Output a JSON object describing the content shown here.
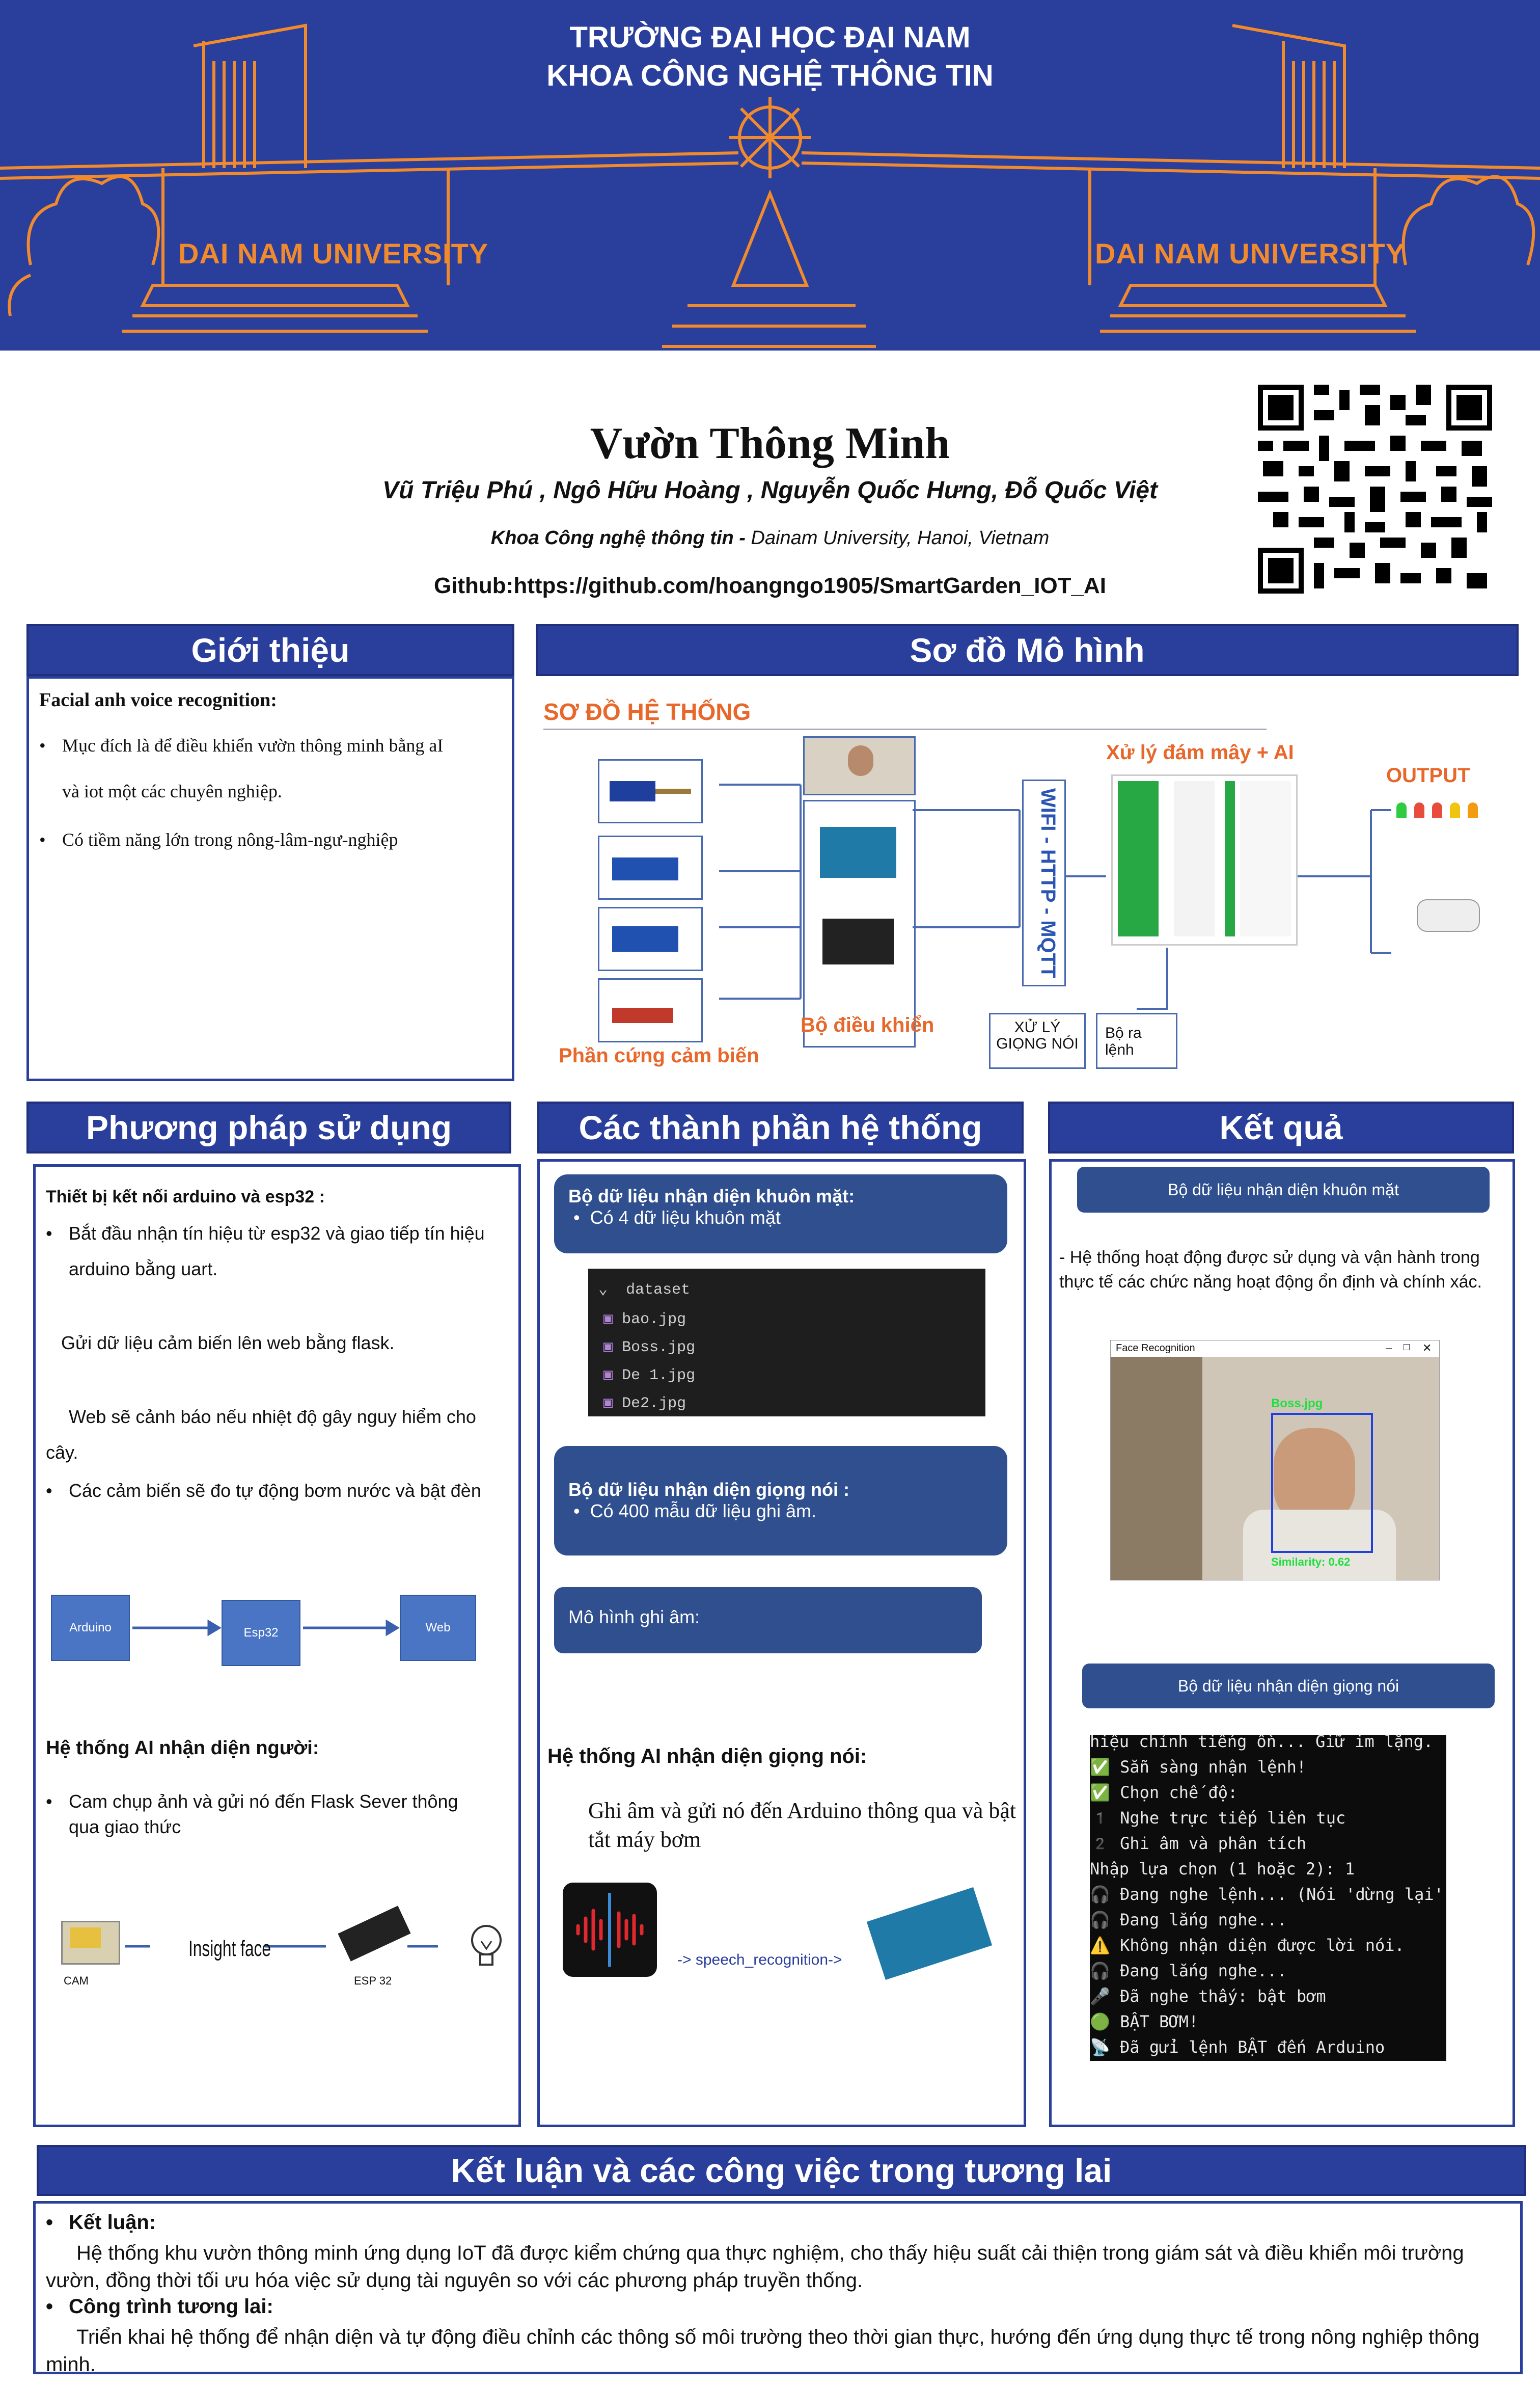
{
  "banner": {
    "line1": "TRƯỜNG ĐẠI HỌC ĐẠI NAM",
    "line2": "KHOA CÔNG NGHỆ THÔNG TIN",
    "brand_left": "DAI NAM UNIVERSITY",
    "brand_right": "DAI NAM UNIVERSITY",
    "bg_color": "#2a3e9c",
    "accent_color": "#f08a2c"
  },
  "header": {
    "title": "Vườn Thông Minh",
    "authors": "Vũ Triệu Phú , Ngô Hữu Hoàng , Nguyễn Quốc Hưng, Đỗ Quốc Việt",
    "affil_bold": "Khoa Công nghệ thông tin -",
    "affil_rest": " Dainam University, Hanoi, Vietnam",
    "github": "Github:https://github.com/hoangngo1905/SmartGarden_IOT_AI",
    "qr_icon": "qr-code-icon"
  },
  "intro": {
    "heading": "Giới thiệu",
    "subtitle": "Facial anh voice recognition:",
    "bullet1_a": "Mục đích là để điều khiển vườn thông minh bằng aI",
    "bullet1_b": "và iot một các chuyên nghiệp.",
    "bullet2": "Có tiềm năng lớn trong nông-lâm-ngư-nghiệp"
  },
  "diagram": {
    "heading": "Sơ đồ Mô hình",
    "system_label": "SƠ ĐỒ HỆ THỐNG",
    "cloud_label": "Xử lý đám mây + AI",
    "output_label": "OUTPUT",
    "wifi_label": "WIFI - HTTP - MQTT",
    "controller_label": "Bộ điều khiển",
    "sensor_label": "Phần cứng cảm biến",
    "voice_box": "XỬ LÝ GIỌNG NÓI",
    "cmd_box": "Bộ ra lệnh"
  },
  "method": {
    "heading": "Phương pháp sử dụng",
    "sub1": "Thiết bị kết nối arduino và esp32 :",
    "b1_a": "Bắt đầu nhận tín hiệu từ esp32 và giao tiếp tín hiệu",
    "b1_b": "arduino bằng uart.",
    "p2": "Gửi dữ liệu cảm biến lên web bằng flask.",
    "p3_a": "Web sẽ cảnh báo nếu nhiệt độ gây nguy hiểm cho",
    "p3_b": "cây.",
    "b2": "Các cảm biến sẽ đo tự động bơm nước và bật đèn",
    "flow": [
      "Arduino",
      "Esp32",
      "Web"
    ],
    "sub2": "Hệ thống AI nhận diện người:",
    "b3_a": "Cam chụp ảnh và gửi nó đến Flask Sever thông",
    "b3_b": "qua giao thức",
    "cam_label": "CAM",
    "insight_label": "Insight face",
    "esp_label": "ESP 32"
  },
  "components": {
    "heading": "Các thành phần hệ thống",
    "card1_title": "Bộ dữ liệu nhận diện khuôn mặt:",
    "card1_item": "Có 4 dữ liệu khuôn mặt",
    "folder": "dataset",
    "files": [
      "bao.jpg",
      "Boss.jpg",
      "De 1.jpg",
      "De2.jpg"
    ],
    "card2_title": "Bộ dữ liệu nhận diện giọng nói :",
    "card2_item": "Có 400 mẫu dữ liệu ghi âm.",
    "card3_title": "Mô hình ghi âm:",
    "voice_heading": "Hệ thống AI nhận diện giọng nói:",
    "voice_text": "Ghi âm và gửi nó đến Arduino thông qua và bật tắt máy bơm",
    "speech_flow": "-> speech_recognition->"
  },
  "results": {
    "heading": "Kết quả",
    "btn1": "Bộ dữ liệu nhận diện khuôn mặt",
    "desc": "- Hệ thống hoạt động được sử dụng và vận hành trong thực tế các chức năng hoạt động ổn định và chính xác.",
    "window_title": "Face Recognition",
    "face_name": "Boss.jpg",
    "face_sim": "Similarity: 0.62",
    "btn2": "Bộ dữ liệu nhận diện giọng nói",
    "terminal": [
      "hiệu chỉnh tiếng ồn... Giữ im lặng.",
      "✅ Sẵn sàng nhận lệnh!",
      "✅ Chọn chế độ:",
      "1️ Nghe trực tiếp liên tục",
      "2️ Ghi âm và phân tích",
      "Nhập lựa chọn (1 hoặc 2): 1",
      "🎧 Đang nghe lệnh... (Nói 'dừng lại' để thoát)",
      "🎧 Đang lắng nghe...",
      "⚠️ Không nhận diện được lời nói.",
      "🎧 Đang lắng nghe...",
      "🎤 Đã nghe thấy: bật bơm",
      "🟢 BẬT BƠM!",
      "📡 Đã gửi lệnh BẬT đến Arduino"
    ]
  },
  "conclusion": {
    "heading": "Kết luận và các công việc trong tương lai",
    "h1": "Kết luận:",
    "p1": "Hệ thống khu vườn thông minh ứng dụng IoT đã được kiểm chứng qua thực nghiệm, cho thấy hiệu suất cải thiện trong giám sát và điều khiển môi trường vườn, đồng thời tối ưu hóa việc sử dụng tài nguyên so với các phương pháp truyền thống.",
    "h2": "Công trình tương lai:",
    "p2": "Triển khai hệ thống để nhận diện và tự động điều chỉnh các thông số môi trường theo thời gian thực, hướng đến ứng dụng thực tế trong nông nghiệp thông minh."
  }
}
